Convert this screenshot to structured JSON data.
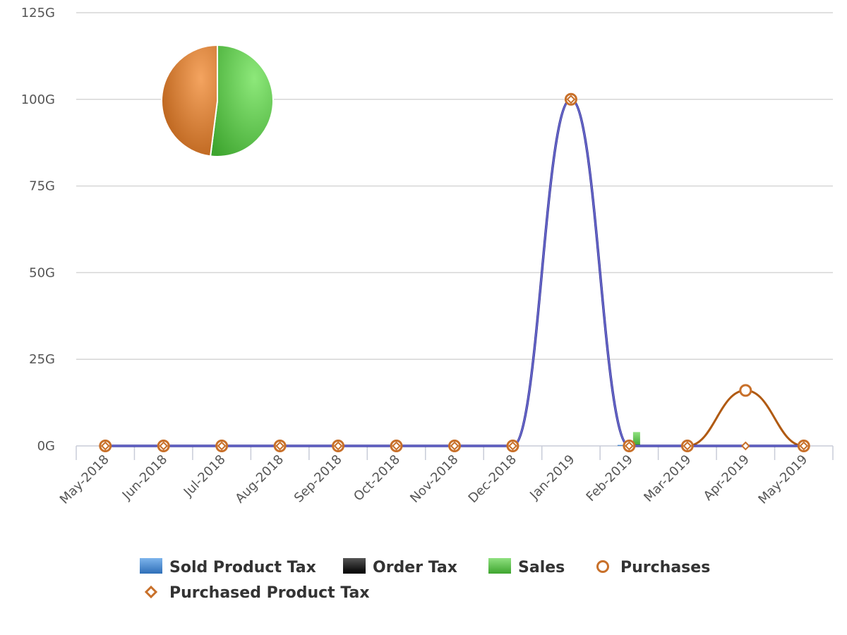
{
  "chart_data": {
    "type": "line",
    "categories": [
      "May-2018",
      "Jun-2018",
      "Jul-2018",
      "Aug-2018",
      "Sep-2018",
      "Oct-2018",
      "Nov-2018",
      "Dec-2018",
      "Jan-2019",
      "Feb-2019",
      "Mar-2019",
      "Apr-2019",
      "May-2019"
    ],
    "y_ticks": [
      "0G",
      "25G",
      "50G",
      "75G",
      "100G",
      "125G"
    ],
    "ylim": [
      0,
      125
    ],
    "y_unit": "G",
    "grid": true,
    "legend_position": "bottom",
    "series": [
      {
        "name": "Sold Product Tax",
        "kind": "bar",
        "color": "#4a90d9",
        "values": [
          0,
          0,
          0,
          0,
          0,
          0,
          0,
          0,
          0,
          0.3,
          0,
          0,
          0
        ]
      },
      {
        "name": "Order Tax",
        "kind": "bar",
        "color": "#111111",
        "values": [
          0,
          0,
          0,
          0,
          0,
          0,
          0,
          0,
          0,
          0,
          0,
          0,
          0
        ]
      },
      {
        "name": "Sales",
        "kind": "bar",
        "color": "#4cbb3c",
        "values": [
          0,
          0,
          0,
          0,
          0,
          0,
          0,
          0,
          0,
          4,
          0,
          0,
          0
        ]
      },
      {
        "name": "Purchases",
        "kind": "line",
        "marker": "circle",
        "color": "#b8601a",
        "values": [
          0,
          0,
          0,
          0,
          0,
          0,
          0,
          0,
          100,
          0,
          0,
          16,
          0
        ]
      },
      {
        "name": "Purchased Product Tax",
        "kind": "line",
        "marker": "diamond",
        "color": "#cc7a2a",
        "values": [
          0,
          0,
          0,
          0,
          0,
          0,
          0,
          0,
          100,
          0,
          0,
          0,
          0
        ]
      }
    ],
    "highlight_line": {
      "color": "#6f6fd0",
      "values": [
        0,
        0,
        0,
        0,
        0,
        0,
        0,
        0,
        100,
        0,
        0,
        0,
        0
      ]
    },
    "pie": {
      "slices": [
        {
          "label": "Sales",
          "value": 52,
          "color": "#5cc04b"
        },
        {
          "label": "Purchases",
          "value": 48,
          "color": "#d9793a"
        }
      ]
    }
  }
}
